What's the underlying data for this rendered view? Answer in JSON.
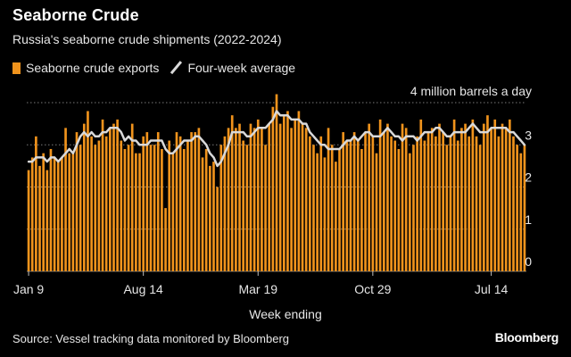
{
  "header": {
    "title": "Seaborne Crude",
    "subtitle": "Russia's seaborne crude shipments (2022-2024)"
  },
  "legend": {
    "bar_label": "Seaborne crude exports",
    "line_label": "Four-week average"
  },
  "footer": {
    "source": "Source: Vessel tracking data monitored by Bloomberg",
    "brand": "Bloomberg"
  },
  "colors": {
    "bar": "#f0931c",
    "line": "#d9d9d9",
    "grid": "#7a7a7a",
    "background": "#000000"
  },
  "chart_data": {
    "type": "bar",
    "title": "Seaborne Crude",
    "subtitle": "Russia's seaborne crude shipments (2022-2024)",
    "xlabel": "Week ending",
    "ylabel": "",
    "y_unit_label": "4 million barrels a day",
    "ylim": [
      0,
      4
    ],
    "y_ticks": [
      {
        "value": 0,
        "label": "0"
      },
      {
        "value": 1,
        "label": "1"
      },
      {
        "value": 2,
        "label": "2"
      },
      {
        "value": 3,
        "label": "3"
      },
      {
        "value": 4,
        "label": "4 million barrels a day"
      }
    ],
    "x_ticks": [
      {
        "index": 0,
        "label": "Jan 9"
      },
      {
        "index": 31,
        "label": "Aug 14"
      },
      {
        "index": 62,
        "label": "Mar 19"
      },
      {
        "index": 93,
        "label": "Oct 29"
      },
      {
        "index": 125,
        "label": "Jul 14"
      }
    ],
    "grid": true,
    "legend_position": "top-left",
    "series": [
      {
        "name": "Seaborne crude exports",
        "type": "bar",
        "values": [
          2.4,
          2.7,
          3.2,
          2.5,
          2.8,
          2.4,
          2.9,
          2.7,
          2.6,
          2.7,
          3.4,
          2.8,
          2.8,
          3.3,
          3.0,
          3.5,
          3.8,
          3.2,
          3.0,
          3.1,
          3.6,
          3.2,
          3.4,
          3.5,
          3.6,
          3.1,
          2.9,
          3.0,
          3.5,
          2.8,
          2.8,
          3.2,
          3.3,
          3.0,
          3.0,
          3.3,
          2.9,
          1.5,
          3.1,
          2.8,
          3.3,
          3.2,
          2.9,
          3.1,
          3.3,
          3.3,
          3.4,
          2.7,
          2.9,
          2.5,
          2.6,
          2.0,
          3.0,
          3.2,
          3.4,
          3.7,
          3.4,
          3.5,
          3.1,
          3.0,
          3.5,
          3.4,
          3.6,
          3.4,
          3.0,
          3.5,
          3.9,
          4.2,
          3.5,
          3.7,
          3.8,
          3.4,
          3.6,
          3.8,
          3.5,
          3.4,
          3.2,
          3.0,
          2.8,
          3.2,
          2.7,
          3.4,
          3.0,
          2.6,
          2.9,
          3.3,
          3.1,
          3.1,
          3.3,
          3.1,
          2.9,
          3.3,
          3.5,
          3.2,
          2.8,
          3.6,
          3.3,
          3.5,
          3.2,
          3.1,
          2.9,
          3.5,
          3.4,
          2.8,
          3.0,
          3.2,
          3.6,
          3.1,
          3.3,
          3.4,
          3.2,
          3.5,
          3.3,
          3.0,
          3.2,
          3.6,
          3.1,
          3.4,
          3.5,
          3.2,
          3.6,
          3.2,
          3.0,
          3.5,
          3.7,
          3.4,
          3.6,
          3.2,
          3.5,
          3.4,
          3.6,
          3.2,
          3.0,
          2.8,
          3.0
        ],
        "color": "#f0931c"
      },
      {
        "name": "Four-week average",
        "type": "line",
        "values": [
          2.6,
          2.6,
          2.7,
          2.7,
          2.7,
          2.6,
          2.7,
          2.7,
          2.6,
          2.7,
          2.8,
          2.9,
          2.8,
          3.0,
          3.2,
          3.3,
          3.2,
          3.3,
          3.2,
          3.2,
          3.3,
          3.3,
          3.4,
          3.4,
          3.4,
          3.3,
          3.1,
          3.2,
          3.1,
          3.1,
          3.0,
          3.0,
          3.0,
          3.1,
          3.1,
          3.1,
          3.1,
          2.9,
          2.8,
          2.8,
          2.9,
          3.0,
          3.1,
          3.1,
          3.1,
          3.2,
          3.2,
          3.1,
          3.0,
          2.8,
          2.7,
          2.5,
          2.6,
          2.8,
          3.0,
          3.3,
          3.3,
          3.3,
          3.3,
          3.2,
          3.2,
          3.3,
          3.4,
          3.4,
          3.4,
          3.5,
          3.6,
          3.8,
          3.7,
          3.7,
          3.7,
          3.6,
          3.6,
          3.6,
          3.5,
          3.5,
          3.3,
          3.2,
          3.1,
          3.0,
          3.0,
          2.9,
          2.9,
          2.9,
          2.9,
          3.0,
          3.1,
          3.1,
          3.2,
          3.1,
          3.2,
          3.3,
          3.3,
          3.2,
          3.2,
          3.2,
          3.3,
          3.4,
          3.3,
          3.2,
          3.2,
          3.1,
          3.2,
          3.2,
          3.2,
          3.1,
          3.2,
          3.3,
          3.3,
          3.3,
          3.4,
          3.4,
          3.3,
          3.2,
          3.2,
          3.3,
          3.3,
          3.3,
          3.3,
          3.4,
          3.5,
          3.4,
          3.3,
          3.3,
          3.3,
          3.4,
          3.4,
          3.4,
          3.4,
          3.4,
          3.3,
          3.3,
          3.2,
          3.1,
          3.0
        ],
        "color": "#d9d9d9"
      }
    ]
  }
}
